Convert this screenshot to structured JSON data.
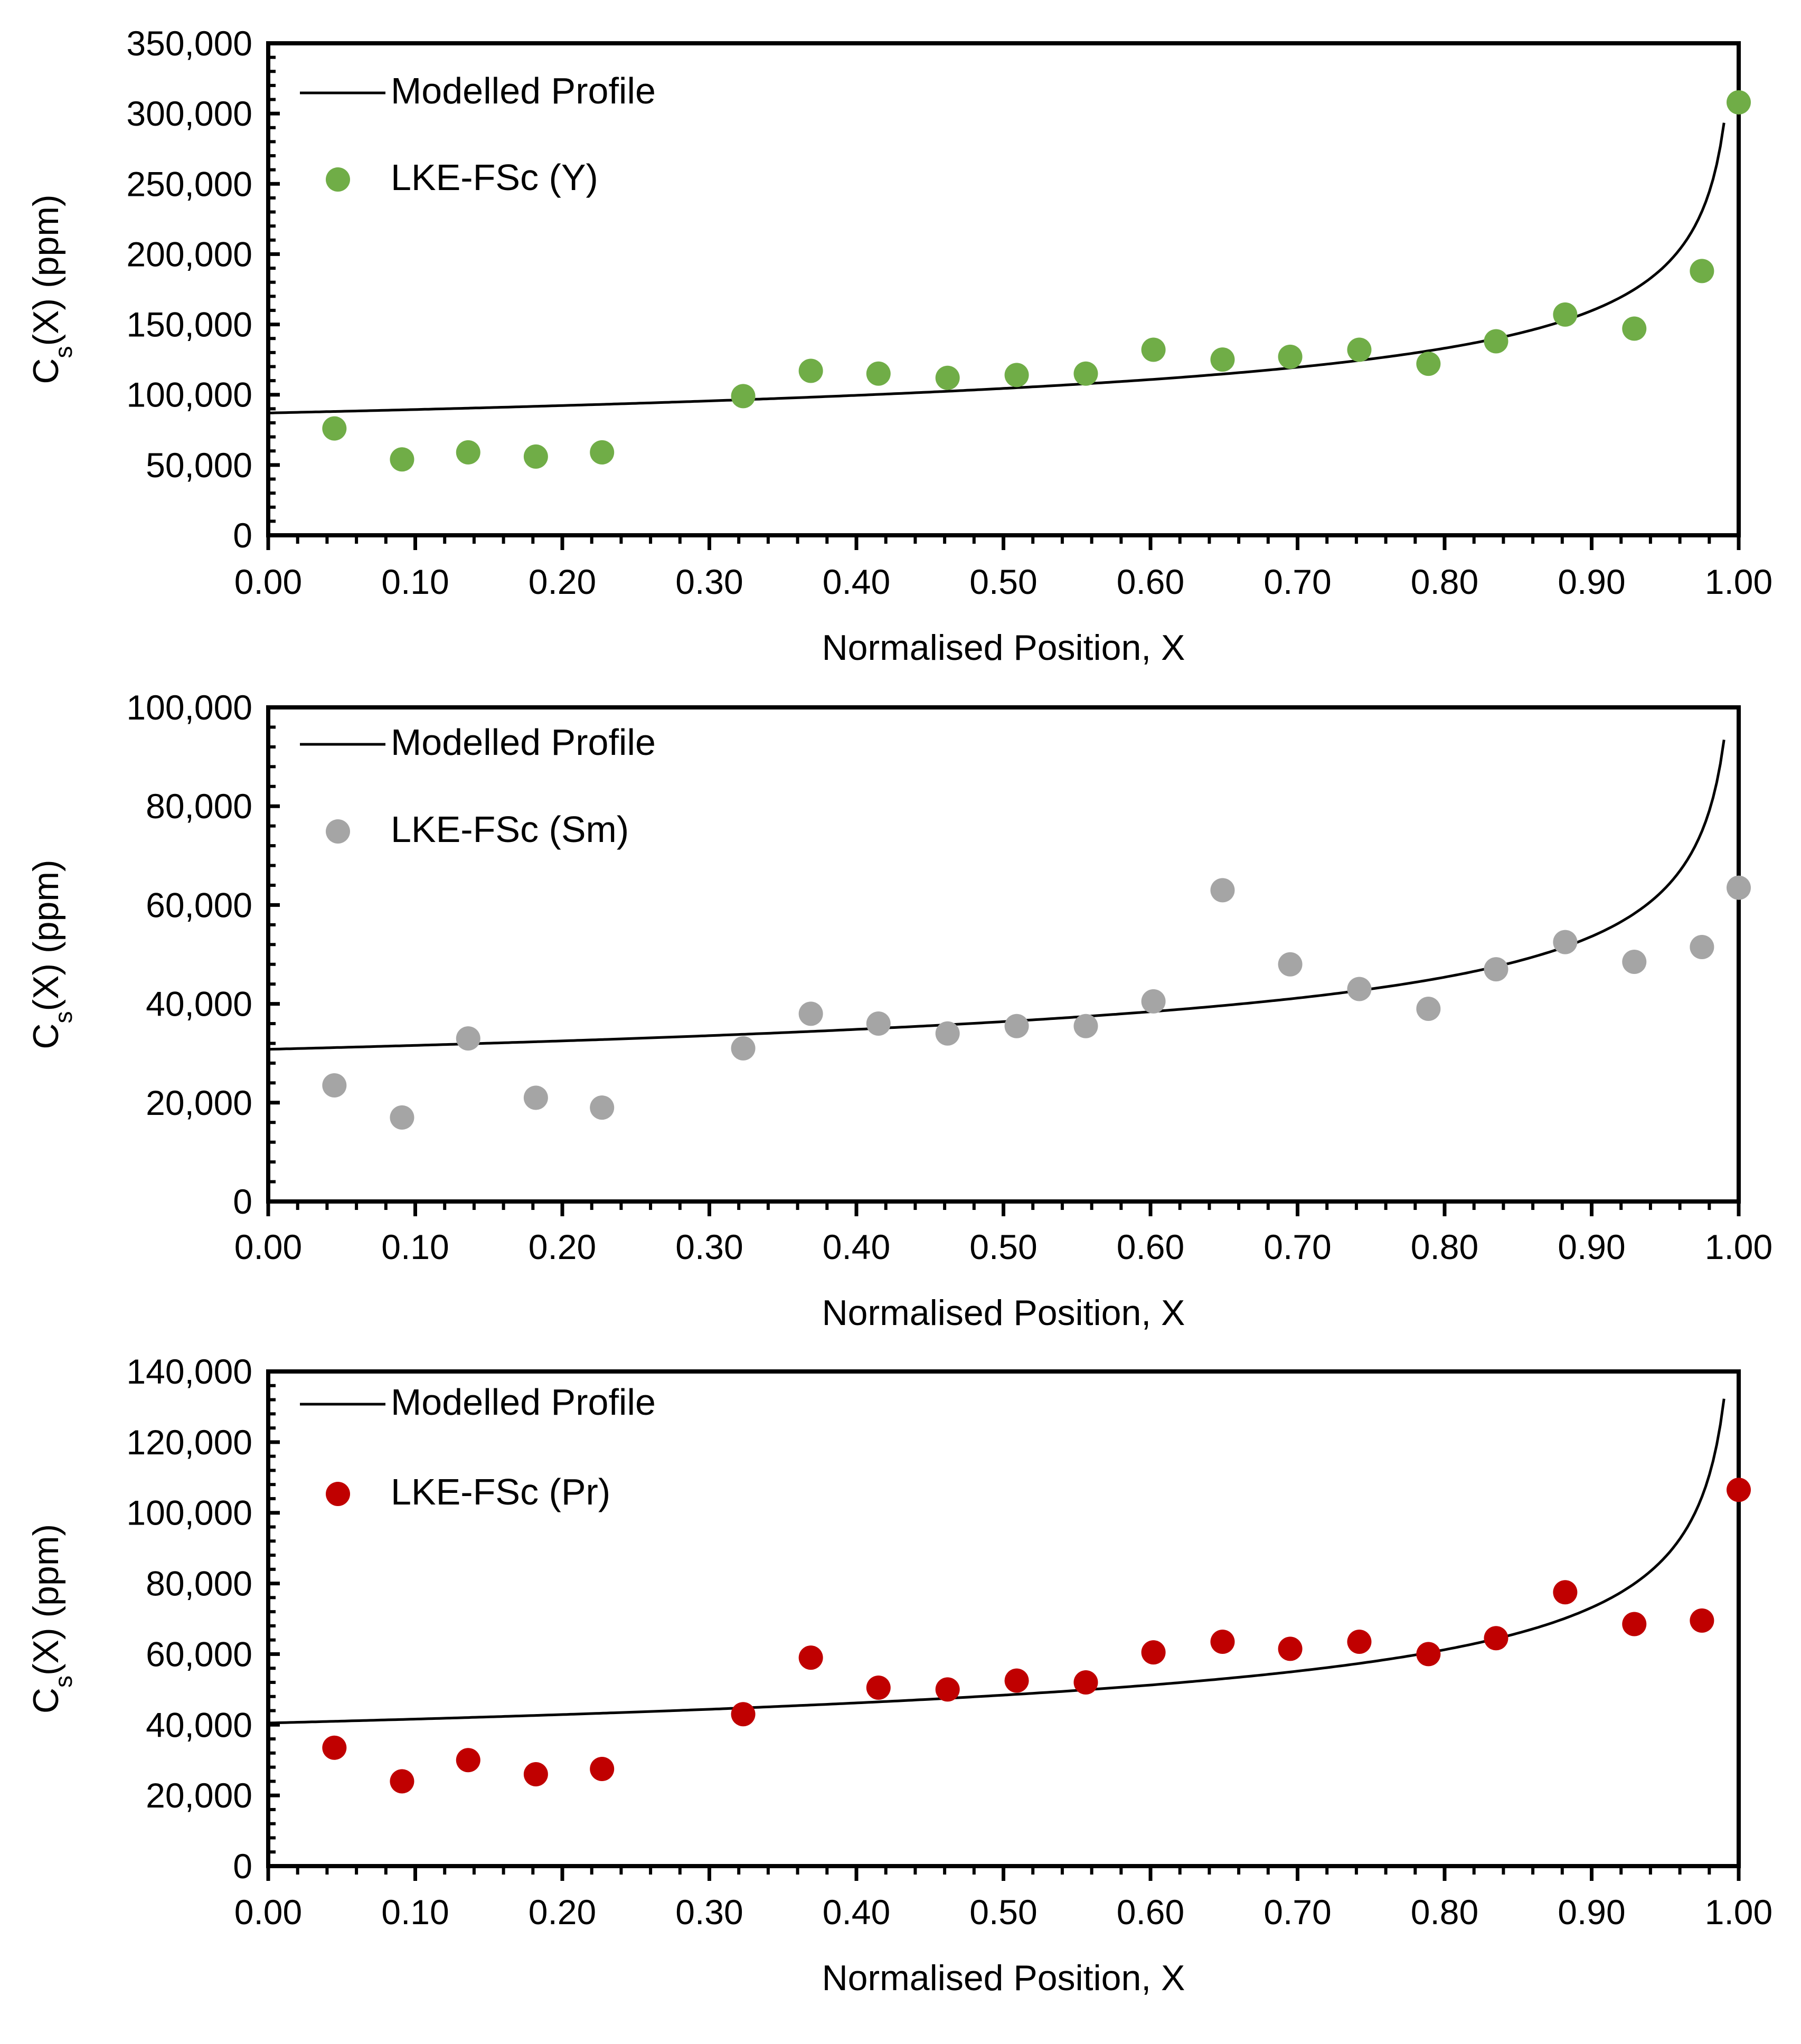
{
  "chart_data": [
    {
      "type": "scatter",
      "title": "",
      "xlabel": "Normalised Position, X",
      "ylabel_main": "C",
      "ylabel_sub": "s",
      "ylabel_rest": "(X) (ppm)",
      "xlim": [
        0,
        1
      ],
      "ylim": [
        0,
        350000
      ],
      "xticks": [
        "0.00",
        "0.10",
        "0.20",
        "0.30",
        "0.40",
        "0.50",
        "0.60",
        "0.70",
        "0.80",
        "0.90",
        "1.00"
      ],
      "yticks": [
        "0",
        "50,000",
        "100,000",
        "150,000",
        "200,000",
        "250,000",
        "300,000",
        "350,000"
      ],
      "legend_position": "top-left",
      "legend": {
        "line_label": "Modelled Profile",
        "marker_label": "LKE-FSc (Y)"
      },
      "marker_color": "#70AD47",
      "line_color": "#000000",
      "points": {
        "x": [
          0.045,
          0.091,
          0.136,
          0.182,
          0.227,
          0.323,
          0.369,
          0.415,
          0.462,
          0.509,
          0.556,
          0.602,
          0.649,
          0.695,
          0.742,
          0.789,
          0.835,
          0.882,
          0.929,
          0.975,
          1.0
        ],
        "y": [
          76000,
          54000,
          59000,
          56000,
          59000,
          99000,
          117000,
          115000,
          112000,
          114000,
          115000,
          132000,
          125000,
          127000,
          132000,
          122000,
          138000,
          157000,
          147000,
          188000,
          308000
        ]
      },
      "curve": {
        "c0": 87000,
        "k": 0.736,
        "x_max": 0.99
      }
    },
    {
      "type": "scatter",
      "title": "",
      "xlabel": "Normalised Position, X",
      "ylabel_main": "C",
      "ylabel_sub": "s",
      "ylabel_rest": "(X) (ppm)",
      "xlim": [
        0,
        1
      ],
      "ylim": [
        0,
        100000
      ],
      "xticks": [
        "0.00",
        "0.10",
        "0.20",
        "0.30",
        "0.40",
        "0.50",
        "0.60",
        "0.70",
        "0.80",
        "0.90",
        "1.00"
      ],
      "yticks": [
        "0",
        "20,000",
        "40,000",
        "60,000",
        "80,000",
        "100,000"
      ],
      "legend_position": "top-left",
      "legend": {
        "line_label": "Modelled Profile",
        "marker_label": "LKE-FSc (Sm)"
      },
      "marker_color": "#A5A5A5",
      "line_color": "#000000",
      "points": {
        "x": [
          0.045,
          0.091,
          0.136,
          0.182,
          0.227,
          0.323,
          0.369,
          0.415,
          0.462,
          0.509,
          0.556,
          0.602,
          0.649,
          0.695,
          0.742,
          0.789,
          0.835,
          0.882,
          0.929,
          0.975,
          1.0
        ],
        "y": [
          23500,
          17000,
          33000,
          21000,
          19000,
          31000,
          38000,
          36000,
          34000,
          35500,
          35500,
          40500,
          63000,
          48000,
          43000,
          39000,
          47000,
          52500,
          48500,
          51500,
          63500
        ]
      },
      "curve": {
        "c0": 30800,
        "k": 0.759,
        "x_max": 0.99
      }
    },
    {
      "type": "scatter",
      "title": "",
      "xlabel": "Normalised Position, X",
      "ylabel_main": "C",
      "ylabel_sub": "s",
      "ylabel_rest": "(X) (ppm)",
      "xlim": [
        0,
        1
      ],
      "ylim": [
        0,
        140000
      ],
      "xticks": [
        "0.00",
        "0.10",
        "0.20",
        "0.30",
        "0.40",
        "0.50",
        "0.60",
        "0.70",
        "0.80",
        "0.90",
        "1.00"
      ],
      "yticks": [
        "0",
        "20,000",
        "40,000",
        "60,000",
        "80,000",
        "100,000",
        "120,000",
        "140,000"
      ],
      "legend_position": "top-left",
      "legend": {
        "line_label": "Modelled Profile",
        "marker_label": "LKE-FSc (Pr)"
      },
      "marker_color": "#C00000",
      "line_color": "#000000",
      "points": {
        "x": [
          0.045,
          0.091,
          0.136,
          0.182,
          0.227,
          0.323,
          0.369,
          0.415,
          0.462,
          0.509,
          0.556,
          0.602,
          0.649,
          0.695,
          0.742,
          0.789,
          0.835,
          0.882,
          0.929,
          0.975,
          1.0
        ],
        "y": [
          33500,
          24000,
          30000,
          26000,
          27500,
          43000,
          59000,
          50500,
          50000,
          52500,
          52000,
          60500,
          63500,
          61500,
          63500,
          60000,
          64500,
          77500,
          68500,
          69500,
          106500
        ]
      },
      "curve": {
        "c0": 40500,
        "k": 0.743,
        "x_max": 0.99
      }
    }
  ]
}
